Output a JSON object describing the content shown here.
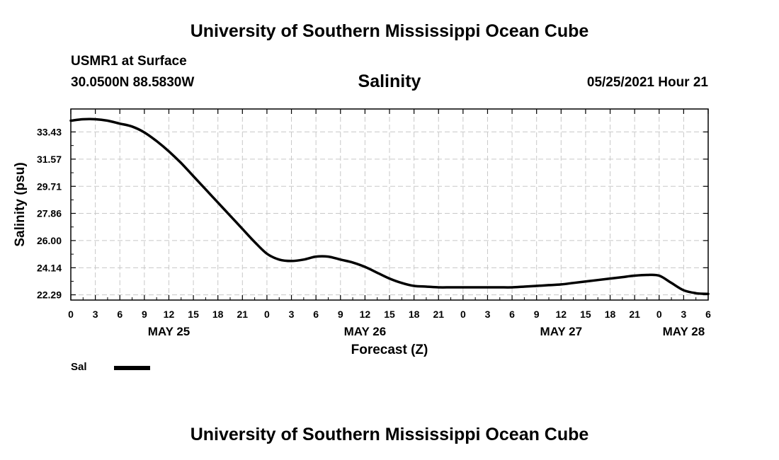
{
  "header": {
    "title": "University of Southern Mississippi Ocean Cube",
    "station": "USMR1 at Surface",
    "coords": "30.0500N  88.5830W",
    "variable": "Salinity",
    "datetime": "05/25/2021 Hour 21"
  },
  "footer": {
    "title": "University of Southern Mississippi Ocean Cube"
  },
  "legend": {
    "label": "Sal",
    "color": "#000000"
  },
  "chart_data": {
    "type": "line",
    "xlabel": "Forecast (Z)",
    "ylabel": "Salinity (psu)",
    "x_unit": "hours since May 25 00Z",
    "xlim": [
      0,
      78
    ],
    "ylim": [
      21.93,
      35.0
    ],
    "grid": true,
    "yticks": [
      22.29,
      24.14,
      26.0,
      27.86,
      29.71,
      31.57,
      33.43
    ],
    "ytick_labels": [
      "22.29",
      "24.14",
      "26.00",
      "27.86",
      "29.71",
      "31.57",
      "33.43"
    ],
    "xticks": [
      0,
      3,
      6,
      9,
      12,
      15,
      18,
      21,
      24,
      27,
      30,
      33,
      36,
      39,
      42,
      45,
      48,
      51,
      54,
      57,
      60,
      63,
      66,
      69,
      72,
      75,
      78
    ],
    "xtick_labels": [
      "0",
      "3",
      "6",
      "9",
      "12",
      "15",
      "18",
      "21",
      "0",
      "3",
      "6",
      "9",
      "12",
      "15",
      "18",
      "21",
      "0",
      "3",
      "6",
      "9",
      "12",
      "15",
      "18",
      "21",
      "0",
      "3",
      "6"
    ],
    "day_labels": [
      {
        "at": 12,
        "label": "MAY 25"
      },
      {
        "at": 36,
        "label": "MAY 26"
      },
      {
        "at": 60,
        "label": "MAY 27"
      },
      {
        "at": 75,
        "label": "MAY 28"
      }
    ],
    "series": [
      {
        "name": "Sal",
        "x": [
          0,
          1.5,
          3,
          4.5,
          6,
          7.5,
          9,
          10.5,
          12,
          13.5,
          15,
          16.5,
          18,
          19.5,
          21,
          22.5,
          24,
          25.5,
          27,
          28.5,
          30,
          31.5,
          33,
          34.5,
          36,
          37.5,
          39,
          40.5,
          42,
          43.5,
          45,
          46.5,
          48,
          49.5,
          51,
          52.5,
          54,
          55.5,
          57,
          58.5,
          60,
          61.5,
          63,
          64.5,
          66,
          67.5,
          69,
          70.5,
          72,
          73.5,
          75,
          76.5,
          78
        ],
        "y": [
          34.2,
          34.3,
          34.3,
          34.2,
          34.0,
          33.8,
          33.4,
          32.8,
          32.1,
          31.3,
          30.4,
          29.5,
          28.6,
          27.7,
          26.8,
          25.9,
          25.1,
          24.7,
          24.6,
          24.7,
          24.9,
          24.9,
          24.7,
          24.5,
          24.2,
          23.8,
          23.4,
          23.1,
          22.9,
          22.85,
          22.8,
          22.8,
          22.8,
          22.8,
          22.8,
          22.8,
          22.8,
          22.85,
          22.9,
          22.95,
          23.0,
          23.1,
          23.2,
          23.3,
          23.4,
          23.5,
          23.6,
          23.65,
          23.6,
          23.1,
          22.6,
          22.4,
          22.35
        ]
      }
    ]
  }
}
